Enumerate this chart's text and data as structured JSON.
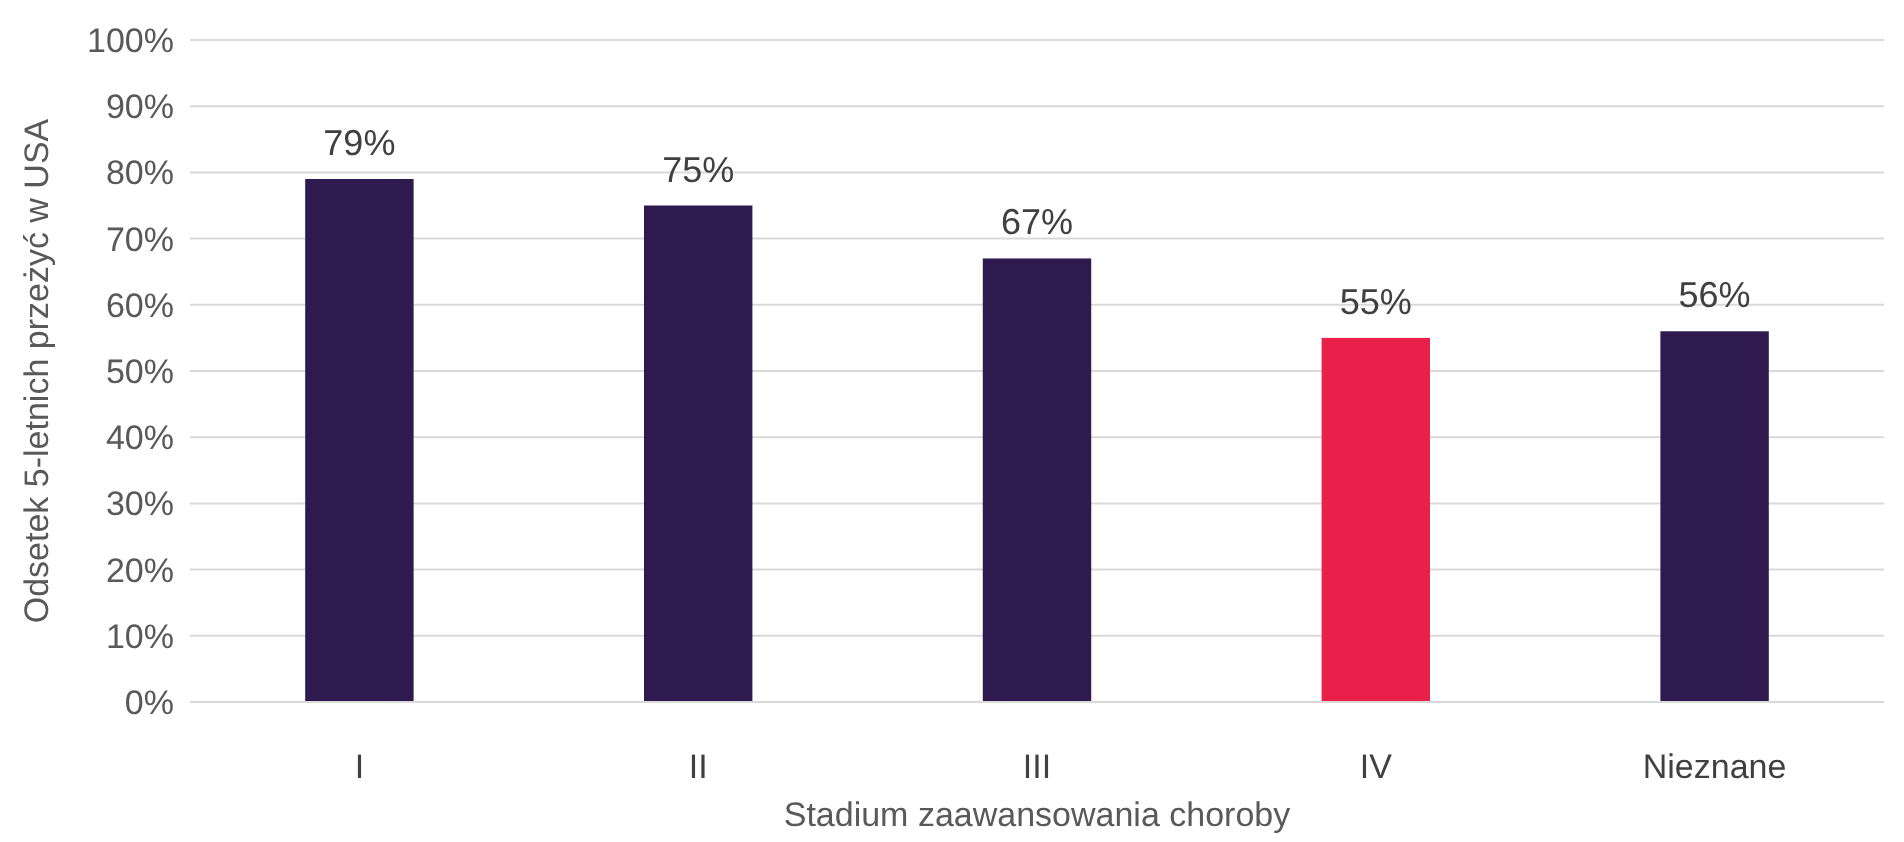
{
  "chart_data": {
    "type": "bar",
    "xlabel": "Stadium zaawansowania choroby",
    "ylabel": "Odsetek 5-letnich przeżyć w USA",
    "categories": [
      "I",
      "II",
      "III",
      "IV",
      "Nieznane"
    ],
    "values": [
      79,
      75,
      67,
      55,
      56
    ],
    "colors": [
      "#2e1a4f",
      "#2e1a4f",
      "#2e1a4f",
      "#e8204a",
      "#2e1a4f"
    ],
    "value_labels": [
      "79%",
      "75%",
      "67%",
      "55%",
      "56%"
    ],
    "ylim": [
      0,
      100
    ],
    "yticks": [
      {
        "value": 0,
        "label": "0%"
      },
      {
        "value": 10,
        "label": "10%"
      },
      {
        "value": 20,
        "label": "20%"
      },
      {
        "value": 30,
        "label": "30%"
      },
      {
        "value": 40,
        "label": "40%"
      },
      {
        "value": 50,
        "label": "50%"
      },
      {
        "value": 60,
        "label": "60%"
      },
      {
        "value": 70,
        "label": "70%"
      },
      {
        "value": 80,
        "label": "80%"
      },
      {
        "value": 90,
        "label": "90%"
      },
      {
        "value": 100,
        "label": "100%"
      }
    ],
    "grid": "y"
  }
}
